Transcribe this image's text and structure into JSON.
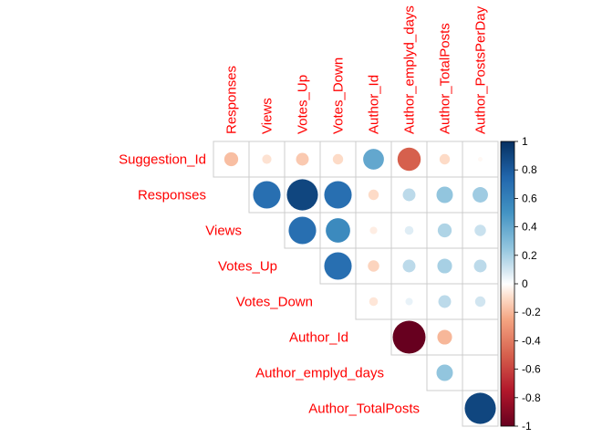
{
  "chart_data": {
    "type": "heatmap",
    "style": "corrplot-circle-upper",
    "label_color": "#ff0000",
    "columns": [
      "Responses",
      "Views",
      "Votes_Up",
      "Votes_Down",
      "Author_Id",
      "Author_emplyd_days",
      "Author_TotalPosts",
      "Author_PostsPerDay"
    ],
    "rows": [
      "Suggestion_Id",
      "Responses",
      "Views",
      "Votes_Up",
      "Votes_Down",
      "Author_Id",
      "Author_emplyd_days",
      "Author_TotalPosts"
    ],
    "matrix": [
      [
        -0.18,
        -0.08,
        -0.15,
        -0.1,
        0.4,
        -0.5,
        -0.1,
        -0.02
      ],
      [
        null,
        0.7,
        0.9,
        0.7,
        -0.1,
        0.15,
        0.25,
        0.22
      ],
      [
        null,
        null,
        0.7,
        0.55,
        -0.05,
        0.07,
        0.18,
        0.12
      ],
      [
        null,
        null,
        null,
        0.7,
        -0.12,
        0.15,
        0.2,
        0.15
      ],
      [
        null,
        null,
        null,
        null,
        -0.07,
        0.05,
        0.15,
        0.1
      ],
      [
        null,
        null,
        null,
        null,
        null,
        -1.0,
        -0.2,
        0.0
      ],
      [
        null,
        null,
        null,
        null,
        null,
        null,
        0.25,
        0.0
      ],
      [
        null,
        null,
        null,
        null,
        null,
        null,
        null,
        0.9
      ]
    ],
    "colorbar": {
      "range": [
        -1,
        1
      ],
      "ticks": [
        "1",
        "0.8",
        "0.6",
        "0.4",
        "0.2",
        "0",
        "-0.2",
        "-0.4",
        "-0.6",
        "-0.8",
        "-1"
      ],
      "tick_values": [
        1,
        0.8,
        0.6,
        0.4,
        0.2,
        0,
        -0.2,
        -0.4,
        -0.6,
        -0.8,
        -1
      ]
    }
  }
}
